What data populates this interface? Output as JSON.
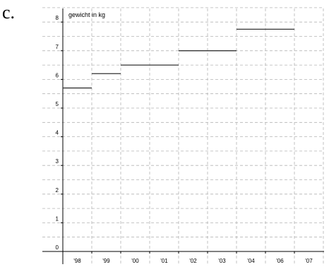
{
  "panel_label": "c.",
  "chart_data": {
    "type": "line",
    "ylabel": "gewicht in kg",
    "xlabel": "",
    "title": "",
    "y_ticks": [
      "0",
      "1",
      "2",
      "3",
      "4",
      "5",
      "6",
      "7",
      "8"
    ],
    "x_ticks": [
      "'98",
      "'99",
      "'00",
      "'01",
      "'02",
      "'03",
      "'04",
      "'06",
      "'07"
    ],
    "ylim": [
      0,
      8.5
    ],
    "grid": true,
    "series": [
      {
        "style": "step",
        "segments": [
          {
            "from": "'98",
            "to": "'99",
            "value": 5.7
          },
          {
            "from": "'99",
            "to": "'00",
            "value": 6.2
          },
          {
            "from": "'00",
            "to": "'02",
            "value": 6.5
          },
          {
            "from": "'02",
            "to": "'04",
            "value": 7.0
          },
          {
            "from": "'04",
            "to": "'07",
            "value": 7.75
          }
        ]
      }
    ]
  }
}
